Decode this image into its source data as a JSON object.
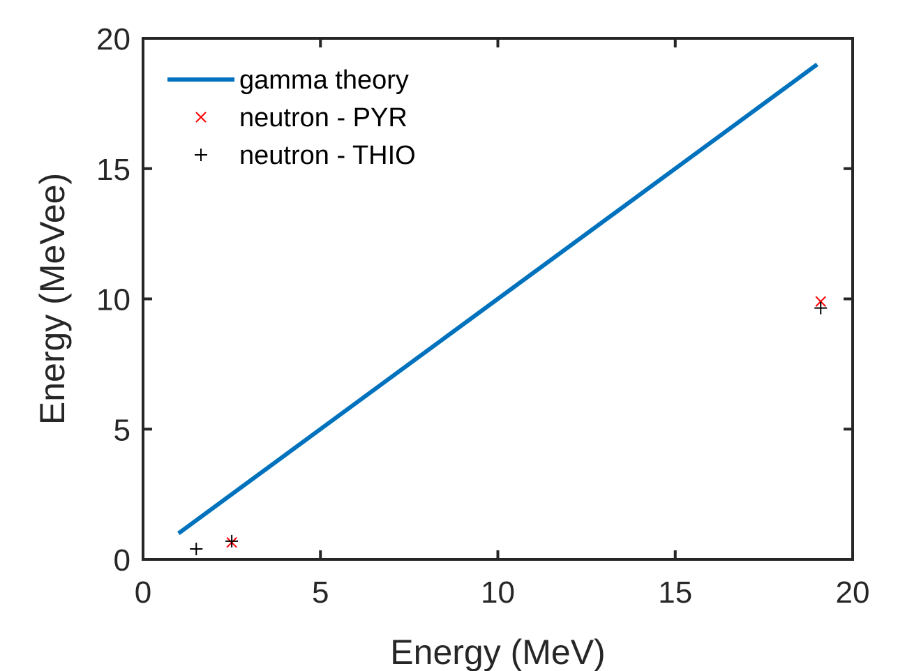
{
  "chart_data": {
    "type": "line",
    "title": "",
    "xlabel": "Energy (MeV)",
    "ylabel": "Energy (MeVee)",
    "xlim": [
      0,
      20
    ],
    "ylim": [
      0,
      20
    ],
    "xticks": [
      "0",
      "5",
      "10",
      "15",
      "20"
    ],
    "yticks": [
      "0",
      "5",
      "10",
      "15",
      "20"
    ],
    "grid": false,
    "legend_position": "top-left",
    "series": [
      {
        "name": "gamma theory",
        "kind": "line",
        "color": "#0072BD",
        "x": [
          1,
          19
        ],
        "y": [
          1,
          19
        ]
      },
      {
        "name": "neutron - PYR",
        "kind": "marker",
        "marker": "x",
        "color": "#FF0000",
        "x": [
          2.5,
          19.1
        ],
        "y": [
          0.65,
          9.9
        ]
      },
      {
        "name": "neutron - THIO",
        "kind": "marker",
        "marker": "+",
        "color": "#000000",
        "x": [
          1.5,
          2.5,
          19.1
        ],
        "y": [
          0.4,
          0.7,
          9.65
        ]
      }
    ]
  }
}
